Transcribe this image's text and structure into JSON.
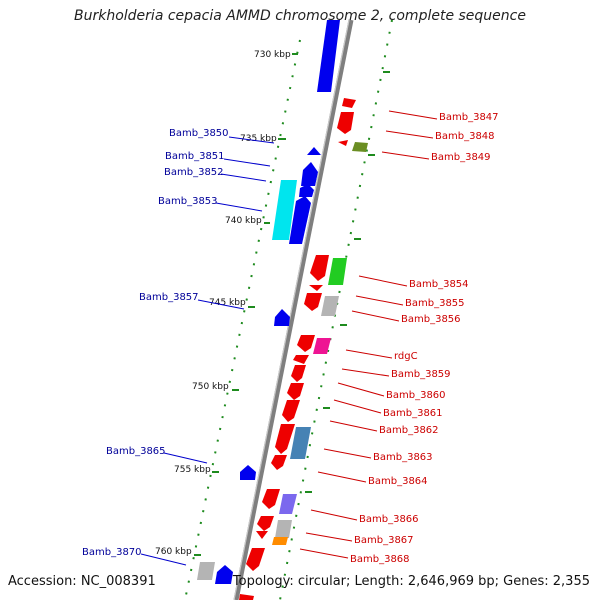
{
  "title": "Burkholderia cepacia AMMD chromosome 2, complete sequence",
  "footer": {
    "accession": "Accession: NC_008391",
    "summary": "Topology: circular; Length: 2,646,969 bp; Genes: 2,355"
  },
  "colors": {
    "backbone": "#8a8a8a",
    "forward_gene": "#0000ee",
    "reverse_gene": "#ee0000",
    "left_label": "#000099",
    "right_label": "#cc0000",
    "tick": "#2e8b22"
  },
  "scale_labels": [
    "730 kbp",
    "735 kbp",
    "740 kbp",
    "745 kbp",
    "750 kbp",
    "755 kbp",
    "760 kbp"
  ],
  "left_genes": [
    "Bamb_3850",
    "Bamb_3851",
    "Bamb_3852",
    "Bamb_3853",
    "Bamb_3857",
    "Bamb_3865",
    "Bamb_3870"
  ],
  "right_genes": [
    "Bamb_3847",
    "Bamb_3848",
    "Bamb_3849",
    "Bamb_3854",
    "Bamb_3855",
    "Bamb_3856",
    "rdgC",
    "Bamb_3859",
    "Bamb_3860",
    "Bamb_3861",
    "Bamb_3862",
    "Bamb_3863",
    "Bamb_3864",
    "Bamb_3866",
    "Bamb_3867",
    "Bamb_3868"
  ]
}
